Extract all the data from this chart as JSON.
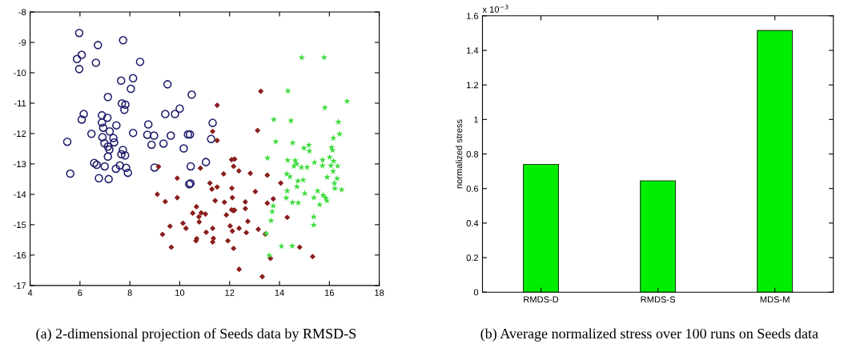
{
  "chart_data": [
    {
      "type": "scatter",
      "xlim": [
        4,
        18
      ],
      "ylim": [
        -17,
        -8
      ],
      "xticks": [
        4,
        6,
        8,
        10,
        12,
        14,
        16,
        18
      ],
      "yticks": [
        -17,
        -16,
        -15,
        -14,
        -13,
        -12,
        -11,
        -10,
        -9,
        -8
      ],
      "grid": false,
      "legend": false,
      "annotations": [
        "(a) 2-dimensional projection of Seeds data by RMSD-S"
      ],
      "series": [
        {
          "color": "#1c1c6b",
          "marker": "circle",
          "x": [
            5.97,
            7.73,
            6.72,
            6.07,
            5.88,
            6.64,
            5.97,
            8.41,
            7.65,
            8.13,
            8.04,
            9.51,
            10.48,
            7.12,
            7.68,
            7.82,
            7.78,
            6.15,
            6.07,
            6.88,
            7.1,
            6.88,
            6.93,
            7.46,
            9.42,
            9.81,
            10.0,
            8.74,
            11.32,
            7.19,
            6.46,
            8.13,
            8.7,
            8.97,
            9.64,
            10.33,
            10.41,
            11.26,
            5.49,
            6.9,
            7.34,
            7.37,
            6.98,
            7.12,
            7.18,
            7.72,
            8.87,
            9.35,
            10.16,
            7.66,
            7.81,
            7.12,
            8.99,
            10.44,
            11.05,
            10.38,
            10.43,
            5.61,
            6.57,
            6.67,
            6.76,
            6.99,
            7.15,
            7.44,
            7.6,
            7.85,
            7.92
          ],
          "values": [
            -8.69,
            -8.93,
            -9.09,
            -9.41,
            -9.55,
            -9.67,
            -9.88,
            -9.64,
            -10.26,
            -10.18,
            -10.53,
            -10.38,
            -10.72,
            -10.8,
            -11.01,
            -11.05,
            -11.22,
            -11.36,
            -11.54,
            -11.4,
            -11.48,
            -11.64,
            -11.81,
            -11.73,
            -11.36,
            -11.36,
            -11.18,
            -11.7,
            -11.65,
            -11.93,
            -12.01,
            -11.98,
            -12.04,
            -12.07,
            -12.07,
            -12.03,
            -12.03,
            -12.18,
            -12.27,
            -12.12,
            -12.15,
            -12.29,
            -12.32,
            -12.43,
            -12.53,
            -12.54,
            -12.37,
            -12.33,
            -12.49,
            -12.68,
            -12.72,
            -12.76,
            -13.12,
            -13.08,
            -12.94,
            -13.67,
            -13.64,
            -13.32,
            -12.97,
            -13.03,
            -13.47,
            -13.08,
            -13.5,
            -13.16,
            -13.05,
            -13.13,
            -13.29
          ]
        },
        {
          "color": "#8b1e1e",
          "marker": "diamond",
          "x": [
            11.5,
            11.32,
            11.5,
            13.12,
            9.15,
            10.83,
            12.08,
            12.2,
            12.16,
            12.37,
            11.76,
            12.83,
            13.51,
            9.9,
            11.21,
            11.5,
            11.29,
            12.09,
            13.03,
            14.05,
            9.1,
            9.9,
            9.42,
            12.11,
            11.42,
            11.79,
            12.63,
            13.51,
            13.75,
            10.67,
            10.52,
            10.86,
            11.03,
            10.77,
            12.08,
            12.15,
            12.2,
            12.63,
            11.87,
            10.13,
            9.61,
            10.25,
            10.78,
            12.73,
            12.02,
            12.11,
            12.38,
            11.32,
            11.06,
            12.67,
            13.15,
            13.43,
            9.31,
            10.68,
            10.65,
            11.35,
            11.32,
            11.93,
            14.31,
            9.66,
            12.16,
            14.81,
            13.64,
            15.33,
            12.38,
            13.31,
            13.25
          ],
          "values": [
            -11.07,
            -11.93,
            -12.23,
            -11.9,
            -13.09,
            -13.14,
            -12.86,
            -12.84,
            -13.08,
            -13.23,
            -13.33,
            -13.31,
            -13.37,
            -13.47,
            -13.63,
            -13.76,
            -13.83,
            -13.8,
            -13.91,
            -13.63,
            -14.0,
            -14.11,
            -14.24,
            -14.11,
            -14.21,
            -14.26,
            -14.25,
            -14.29,
            -14.15,
            -14.41,
            -14.62,
            -14.61,
            -14.65,
            -14.74,
            -14.51,
            -14.54,
            -14.52,
            -14.47,
            -14.68,
            -14.95,
            -15.05,
            -15.12,
            -14.91,
            -14.89,
            -15.04,
            -15.21,
            -15.12,
            -15.12,
            -15.25,
            -15.26,
            -15.15,
            -15.31,
            -15.32,
            -15.46,
            -15.53,
            -15.45,
            -15.57,
            -15.53,
            -14.76,
            -15.74,
            -15.78,
            -15.74,
            -16.11,
            -16.05,
            -16.47,
            -16.71,
            -10.61
          ]
        },
        {
          "color": "#3ddc3d",
          "marker": "star",
          "x": [
            16.71,
            15.82,
            13.77,
            14.46,
            16.36,
            16.41,
            16.16,
            13.85,
            14.53,
            15.18,
            14.98,
            15.2,
            16.09,
            16.13,
            13.52,
            14.33,
            14.63,
            14.69,
            14.58,
            14.88,
            15.11,
            15.4,
            15.73,
            16.01,
            16.17,
            15.72,
            16.06,
            16.33,
            16.15,
            14.29,
            14.42,
            15.91,
            16.31,
            14.74,
            14.95,
            14.7,
            16.2,
            16.22,
            16.49,
            14.31,
            15.01,
            15.53,
            14.27,
            15.38,
            15.75,
            15.85,
            15.9,
            14.52,
            14.75,
            15.61,
            13.75,
            13.71,
            13.66,
            15.37,
            15.37,
            13.47,
            14.08,
            14.51,
            13.59,
            14.34,
            14.89,
            15.79
          ],
          "values": [
            -10.94,
            -11.15,
            -11.54,
            -11.58,
            -11.62,
            -12.02,
            -12.15,
            -12.27,
            -12.31,
            -12.38,
            -12.48,
            -12.58,
            -12.46,
            -12.55,
            -12.81,
            -12.88,
            -12.89,
            -13.0,
            -13.07,
            -13.11,
            -13.11,
            -12.95,
            -12.87,
            -12.78,
            -12.91,
            -13.06,
            -13.06,
            -13.07,
            -13.24,
            -13.33,
            -13.42,
            -13.44,
            -13.48,
            -13.56,
            -13.53,
            -13.75,
            -13.64,
            -13.81,
            -13.85,
            -13.89,
            -13.97,
            -13.89,
            -14.12,
            -14.11,
            -14.03,
            -14.12,
            -14.21,
            -14.27,
            -14.28,
            -14.34,
            -14.38,
            -14.57,
            -14.87,
            -14.74,
            -15.01,
            -15.29,
            -15.71,
            -15.7,
            -16.01,
            -10.6,
            -9.5,
            -9.5
          ]
        }
      ]
    },
    {
      "type": "bar",
      "categories": [
        "RMDS-D",
        "RMDS-S",
        "MDS-M"
      ],
      "values": [
        0.74,
        0.645,
        1.515
      ],
      "color": "#00ee00",
      "ylim": [
        0,
        1.6
      ],
      "yticks": [
        0,
        0.2,
        0.4,
        0.6,
        0.8,
        1,
        1.2,
        1.4,
        1.6
      ],
      "ylabel": "normalized stress",
      "grid": false,
      "annotations": [
        "x 10$^{−3}$",
        "(b) Average normalized stress over 100 runs on Seeds data"
      ]
    }
  ]
}
